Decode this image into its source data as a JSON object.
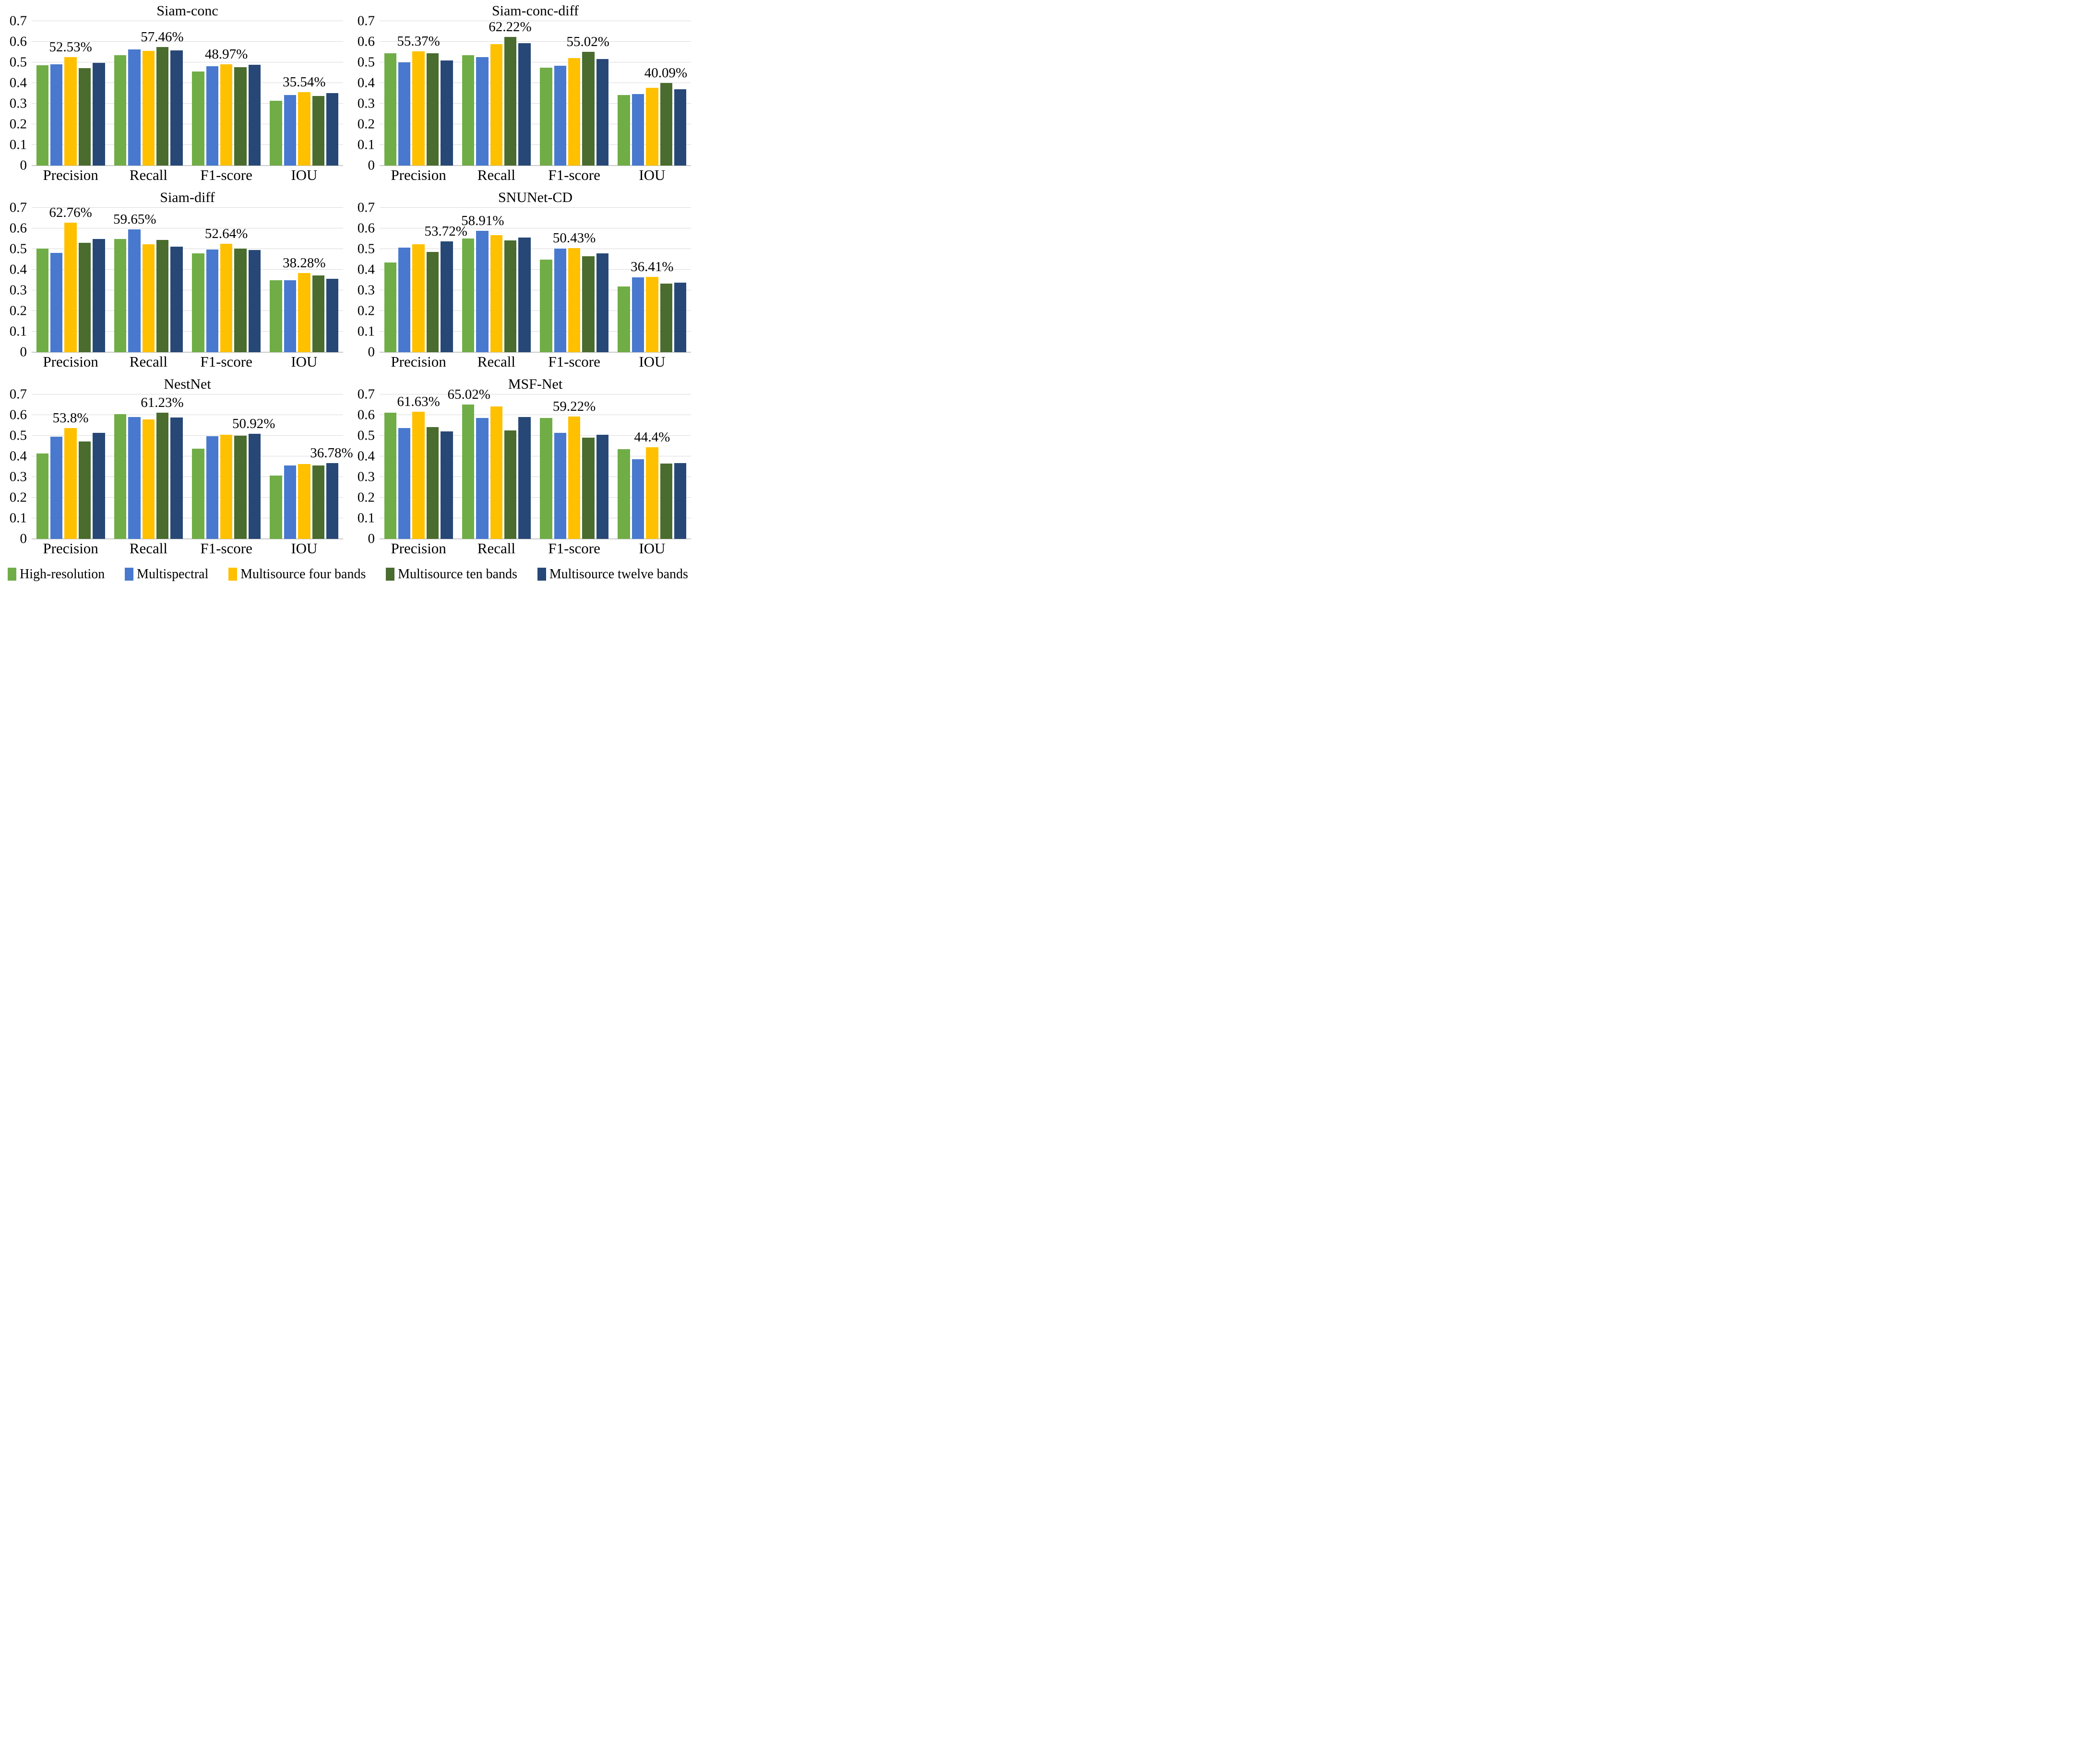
{
  "figure": {
    "background": "#ffffff",
    "gridline_color": "#d9d9d9",
    "axis_line_color": "#c9c9c9"
  },
  "colors": {
    "high_resolution": "#70AD47",
    "multispectral": "#4879CE",
    "multisource_four_bands": "#FFC000",
    "multisource_ten_bands": "#4A6C2E",
    "multisource_twelve_bands": "#274876"
  },
  "legend": {
    "items": [
      {
        "label": "High-resolution",
        "color": "#70AD47"
      },
      {
        "label": "Multispectral",
        "color": "#4879CE"
      },
      {
        "label": "Multisource four bands",
        "color": "#FFC000"
      },
      {
        "label": "Multisource ten bands",
        "color": "#4A6C2E"
      },
      {
        "label": "Multisource twelve bands",
        "color": "#274876"
      }
    ]
  },
  "axis": {
    "min": 0,
    "max": 0.7,
    "tick_labels": [
      "0",
      "0.1",
      "0.2",
      "0.3",
      "0.4",
      "0.5",
      "0.6",
      "0.7"
    ]
  },
  "chart_data": [
    {
      "type": "bar",
      "title": "Siam-conc",
      "categories": [
        "Precision",
        "Recall",
        "F1-score",
        "IOU"
      ],
      "ylim": [
        0,
        0.7
      ],
      "grid": true,
      "legend_position": "bottom-shared",
      "series": [
        {
          "name": "High-resolution",
          "values": [
            0.487,
            0.536,
            0.455,
            0.315
          ]
        },
        {
          "name": "Multispectral",
          "values": [
            0.49,
            0.562,
            0.482,
            0.341
          ]
        },
        {
          "name": "Multisource four bands",
          "values": [
            0.5253,
            0.556,
            0.4897,
            0.3554
          ]
        },
        {
          "name": "Multisource ten bands",
          "values": [
            0.471,
            0.5746,
            0.477,
            0.338
          ]
        },
        {
          "name": "Multisource twelve bands",
          "values": [
            0.497,
            0.558,
            0.488,
            0.352
          ]
        }
      ],
      "annotations": [
        {
          "category": 0,
          "series": 2,
          "text": "52.53%"
        },
        {
          "category": 1,
          "series": 3,
          "text": "57.46%"
        },
        {
          "category": 2,
          "series": 2,
          "text": "48.97%"
        },
        {
          "category": 3,
          "series": 2,
          "text": "35.54%"
        }
      ]
    },
    {
      "type": "bar",
      "title": "Siam-conc-diff",
      "categories": [
        "Precision",
        "Recall",
        "F1-score",
        "IOU"
      ],
      "ylim": [
        0,
        0.7
      ],
      "grid": true,
      "legend_position": "bottom-shared",
      "series": [
        {
          "name": "High-resolution",
          "values": [
            0.545,
            0.536,
            0.474,
            0.341
          ]
        },
        {
          "name": "Multispectral",
          "values": [
            0.501,
            0.525,
            0.483,
            0.347
          ]
        },
        {
          "name": "Multisource four bands",
          "values": [
            0.5537,
            0.588,
            0.521,
            0.377
          ]
        },
        {
          "name": "Multisource ten bands",
          "values": [
            0.545,
            0.6222,
            0.5502,
            0.4009
          ]
        },
        {
          "name": "Multisource twelve bands",
          "values": [
            0.51,
            0.592,
            0.517,
            0.37
          ]
        }
      ],
      "annotations": [
        {
          "category": 0,
          "series": 2,
          "text": "55.37%"
        },
        {
          "category": 1,
          "series": 3,
          "text": "62.22%"
        },
        {
          "category": 2,
          "series": 3,
          "text": "55.02%"
        },
        {
          "category": 3,
          "series": 3,
          "text": "40.09%"
        }
      ]
    },
    {
      "type": "bar",
      "title": "Siam-diff",
      "categories": [
        "Precision",
        "Recall",
        "F1-score",
        "IOU"
      ],
      "ylim": [
        0,
        0.7
      ],
      "grid": true,
      "legend_position": "bottom-shared",
      "series": [
        {
          "name": "High-resolution",
          "values": [
            0.502,
            0.548,
            0.48,
            0.35
          ]
        },
        {
          "name": "Multispectral",
          "values": [
            0.482,
            0.5965,
            0.497,
            0.35
          ]
        },
        {
          "name": "Multisource four bands",
          "values": [
            0.6276,
            0.523,
            0.5264,
            0.3828
          ]
        },
        {
          "name": "Multisource ten bands",
          "values": [
            0.531,
            0.545,
            0.503,
            0.372
          ]
        },
        {
          "name": "Multisource twelve bands",
          "values": [
            0.549,
            0.512,
            0.496,
            0.356
          ]
        }
      ],
      "annotations": [
        {
          "category": 0,
          "series": 2,
          "text": "62.76%"
        },
        {
          "category": 1,
          "series": 1,
          "text": "59.65%"
        },
        {
          "category": 2,
          "series": 2,
          "text": "52.64%"
        },
        {
          "category": 3,
          "series": 2,
          "text": "38.28%"
        }
      ]
    },
    {
      "type": "bar",
      "title": "SNUNet-CD",
      "categories": [
        "Precision",
        "Recall",
        "F1-score",
        "IOU"
      ],
      "ylim": [
        0,
        0.7
      ],
      "grid": true,
      "legend_position": "bottom-shared",
      "series": [
        {
          "name": "High-resolution",
          "values": [
            0.435,
            0.552,
            0.448,
            0.318
          ]
        },
        {
          "name": "Multispectral",
          "values": [
            0.508,
            0.5891,
            0.502,
            0.362
          ]
        },
        {
          "name": "Multisource four bands",
          "values": [
            0.523,
            0.568,
            0.5043,
            0.3641
          ]
        },
        {
          "name": "Multisource ten bands",
          "values": [
            0.486,
            0.543,
            0.465,
            0.332
          ]
        },
        {
          "name": "Multisource twelve bands",
          "values": [
            0.5372,
            0.555,
            0.478,
            0.337
          ]
        }
      ],
      "annotations": [
        {
          "category": 0,
          "series": 4,
          "text": "53.72%"
        },
        {
          "category": 1,
          "series": 1,
          "text": "58.91%"
        },
        {
          "category": 2,
          "series": 2,
          "text": "50.43%"
        },
        {
          "category": 3,
          "series": 2,
          "text": "36.41%"
        }
      ]
    },
    {
      "type": "bar",
      "title": "NestNet",
      "categories": [
        "Precision",
        "Recall",
        "F1-score",
        "IOU"
      ],
      "ylim": [
        0,
        0.7
      ],
      "grid": true,
      "legend_position": "bottom-shared",
      "series": [
        {
          "name": "High-resolution",
          "values": [
            0.415,
            0.605,
            0.438,
            0.308
          ]
        },
        {
          "name": "Multispectral",
          "values": [
            0.495,
            0.59,
            0.497,
            0.355
          ]
        },
        {
          "name": "Multisource four bands",
          "values": [
            0.538,
            0.578,
            0.505,
            0.362
          ]
        },
        {
          "name": "Multisource ten bands",
          "values": [
            0.472,
            0.6123,
            0.5,
            0.357
          ]
        },
        {
          "name": "Multisource twelve bands",
          "values": [
            0.515,
            0.588,
            0.5092,
            0.3678
          ]
        }
      ],
      "annotations": [
        {
          "category": 0,
          "series": 2,
          "text": "53.8%"
        },
        {
          "category": 1,
          "series": 3,
          "text": "61.23%"
        },
        {
          "category": 2,
          "series": 4,
          "text": "50.92%"
        },
        {
          "category": 3,
          "series": 4,
          "text": "36.78%"
        }
      ]
    },
    {
      "type": "bar",
      "title": "MSF-Net",
      "categories": [
        "Precision",
        "Recall",
        "F1-score",
        "IOU"
      ],
      "ylim": [
        0,
        0.7
      ],
      "grid": true,
      "legend_position": "bottom-shared",
      "series": [
        {
          "name": "High-resolution",
          "values": [
            0.611,
            0.6502,
            0.586,
            0.434
          ]
        },
        {
          "name": "Multispectral",
          "values": [
            0.538,
            0.585,
            0.515,
            0.385
          ]
        },
        {
          "name": "Multisource four bands",
          "values": [
            0.6163,
            0.643,
            0.5922,
            0.444
          ]
        },
        {
          "name": "Multisource ten bands",
          "values": [
            0.541,
            0.525,
            0.49,
            0.365
          ]
        },
        {
          "name": "Multisource twelve bands",
          "values": [
            0.522,
            0.59,
            0.505,
            0.368
          ]
        }
      ],
      "annotations": [
        {
          "category": 0,
          "series": 2,
          "text": "61.63%"
        },
        {
          "category": 1,
          "series": 0,
          "text": "65.02%"
        },
        {
          "category": 2,
          "series": 2,
          "text": "59.22%"
        },
        {
          "category": 3,
          "series": 2,
          "text": "44.4%"
        }
      ]
    }
  ]
}
